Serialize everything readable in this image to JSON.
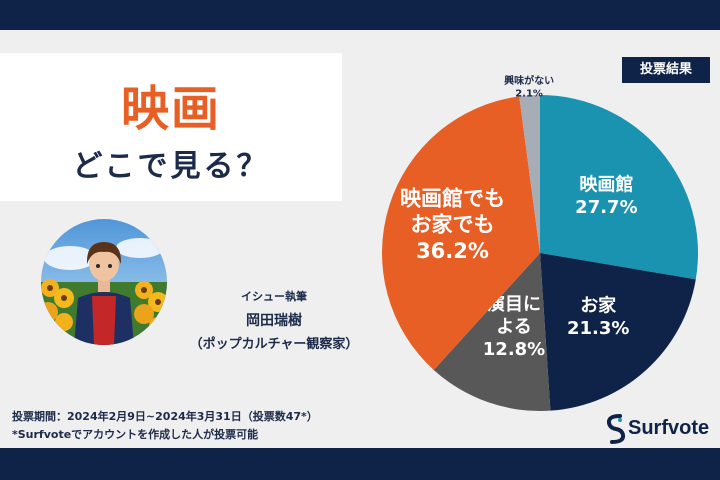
{
  "header": {
    "title": "映画",
    "subtitle": "どこで見る？"
  },
  "badge": {
    "label": "投票結果"
  },
  "writer": {
    "role": "イシュー執筆",
    "name": "岡田瑞樹",
    "title": "（ポップカルチャー観察家）"
  },
  "footer": {
    "period": "投票期間：2024年2月9日~2024年3月31日（投票数47*）",
    "note": "*Surfvoteでアカウントを作成した人が投票可能"
  },
  "brand": {
    "name": "Surfvote"
  },
  "colors": {
    "navy": "#0e2347",
    "accent_orange": "#e85f26",
    "teal": "#1a93b0",
    "dark_gray": "#585858",
    "light_gray": "#a7adb4"
  },
  "chart_data": {
    "type": "pie",
    "title": "",
    "slices": [
      {
        "label_lines": [
          "映画館"
        ],
        "value": 27.7,
        "value_text": "27.7%",
        "color": "#1a93b0"
      },
      {
        "label_lines": [
          "お家"
        ],
        "value": 21.3,
        "value_text": "21.3%",
        "color": "#0e2347"
      },
      {
        "label_lines": [
          "演目に",
          "よる"
        ],
        "value": 12.8,
        "value_text": "12.8%",
        "color": "#585858"
      },
      {
        "label_lines": [
          "映画館でも",
          "お家でも"
        ],
        "value": 36.2,
        "value_text": "36.2%",
        "color": "#e85f26"
      },
      {
        "label_lines": [
          "興味がない"
        ],
        "value": 2.1,
        "value_text": "2.1%",
        "color": "#a7adb4"
      }
    ]
  }
}
